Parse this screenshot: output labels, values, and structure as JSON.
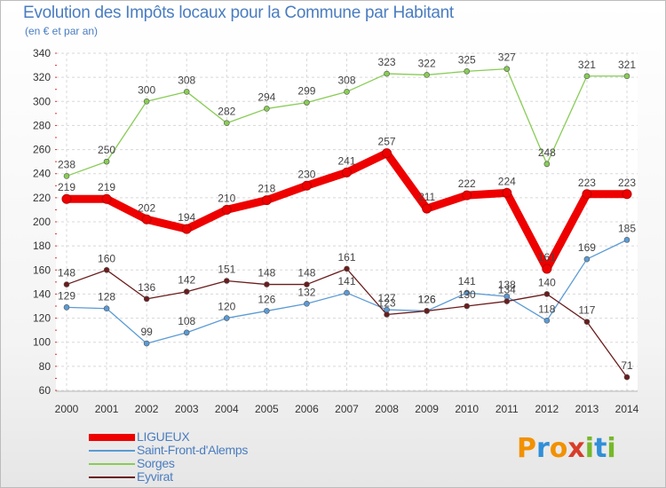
{
  "title": "Evolution des Impôts locaux pour la Commune par Habitant",
  "subtitle": "(en € et par an)",
  "brand": {
    "letters": [
      "P",
      "r",
      "o",
      "x",
      "i",
      "t",
      "i"
    ],
    "colors": [
      "#f29100",
      "#2f8fd8",
      "#f29100",
      "#d83d2a",
      "#76b82a",
      "#2f8fd8",
      "#76b82a"
    ]
  },
  "chart_data": {
    "type": "line",
    "x": [
      "2000",
      "2001",
      "2002",
      "2003",
      "2004",
      "2005",
      "2006",
      "2007",
      "2008",
      "2009",
      "2010",
      "2011",
      "2012",
      "2013",
      "2014"
    ],
    "ylim": [
      60,
      340
    ],
    "yticks": [
      60,
      80,
      100,
      120,
      140,
      160,
      180,
      200,
      220,
      240,
      260,
      280,
      300,
      320,
      340
    ],
    "grid": true,
    "legend_position": "bottom-left",
    "series": [
      {
        "name": "LIGUEUX",
        "color": "#ee0000",
        "values": [
          219,
          219,
          202,
          194,
          210,
          218,
          230,
          241,
          257,
          211,
          222,
          224,
          161,
          223,
          223
        ]
      },
      {
        "name": "Saint-Front-d'Alemps",
        "color": "#5b9bd5",
        "values": [
          129,
          128,
          99,
          108,
          120,
          126,
          132,
          141,
          127,
          126,
          141,
          138,
          118,
          169,
          185
        ]
      },
      {
        "name": "Sorges",
        "color": "#88cc55",
        "values": [
          238,
          250,
          300,
          308,
          282,
          294,
          299,
          308,
          323,
          322,
          325,
          327,
          248,
          321,
          321
        ]
      },
      {
        "name": "Eyvirat",
        "color": "#6b1c1c",
        "values": [
          148,
          160,
          136,
          142,
          151,
          148,
          148,
          161,
          123,
          126,
          130,
          134,
          140,
          117,
          71
        ]
      }
    ]
  }
}
